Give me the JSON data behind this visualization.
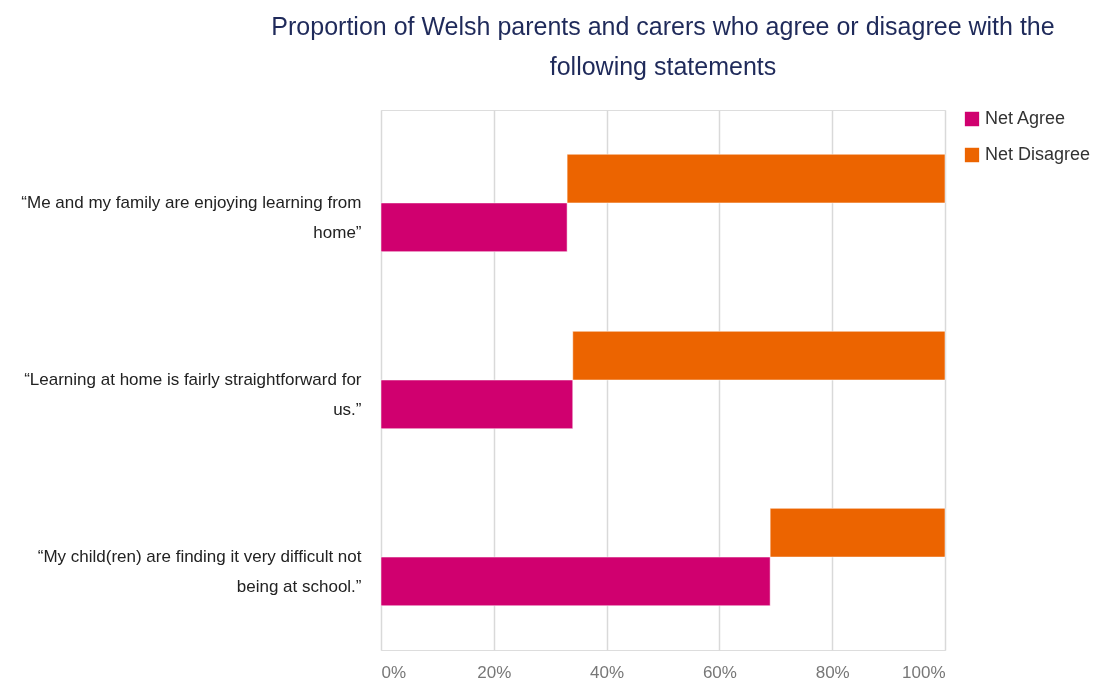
{
  "chart_data": {
    "type": "bar",
    "orientation": "horizontal",
    "title": "Proportion of Welsh parents and carers who agree or disagree with the following statements",
    "categories": [
      "“Me and my family are enjoying learning from home”",
      "“Learning at home is fairly straightforward for us.”",
      "“My child(ren) are finding it very difficult not being at school.”"
    ],
    "series": [
      {
        "name": "Net Agree",
        "color": "#d0006f",
        "values": [
          33,
          34,
          69
        ]
      },
      {
        "name": "Net Disagree",
        "color": "#ec6400",
        "values": [
          67,
          66,
          31
        ],
        "base": [
          33,
          34,
          69
        ]
      }
    ],
    "xlim": [
      0,
      100
    ],
    "xticks": [
      {
        "value": 0,
        "label": "0%"
      },
      {
        "value": 20,
        "label": "20%"
      },
      {
        "value": 40,
        "label": "40%"
      },
      {
        "value": 60,
        "label": "60%"
      },
      {
        "value": 80,
        "label": "80%"
      },
      {
        "value": 100,
        "label": "100%"
      }
    ],
    "grid": "x",
    "legend": "right"
  }
}
